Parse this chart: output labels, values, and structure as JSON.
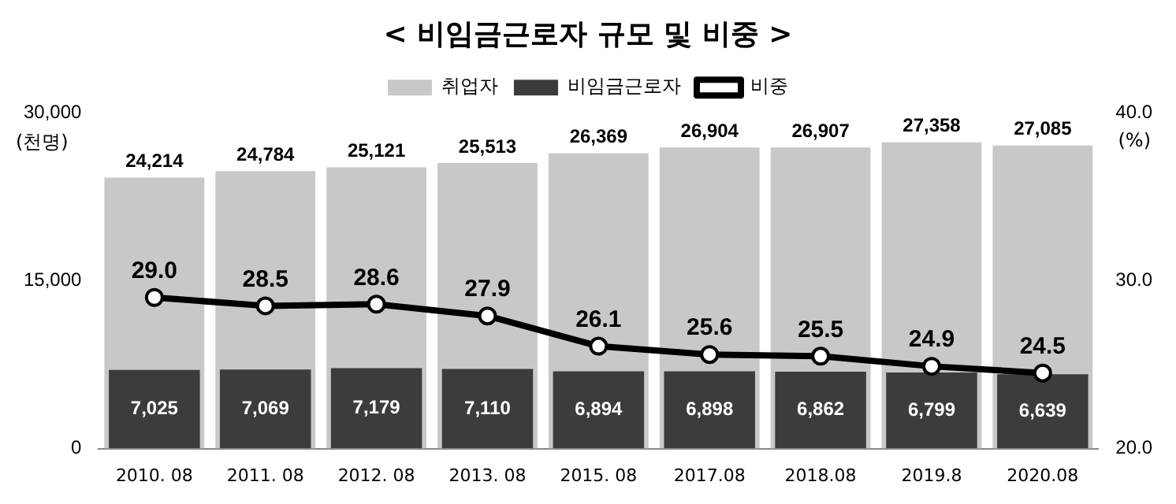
{
  "chart_data": {
    "type": "bar",
    "title": "< 비임금근로자 규모 및 비중 >",
    "ylabel": "(천명)",
    "y2label": "(%)",
    "categories": [
      "2010. 08",
      "2011. 08",
      "2012. 08",
      "2013. 08",
      "2015. 08",
      "2017.08",
      "2018.08",
      "2019.8",
      "2020.08"
    ],
    "series": [
      {
        "name": "취업자",
        "color": "#c8c8c8",
        "values": [
          24214,
          24784,
          25121,
          25513,
          26369,
          26904,
          26907,
          27358,
          27085
        ],
        "value_labels": [
          "24,214",
          "24,784",
          "25,121",
          "25,513",
          "26,369",
          "26,904",
          "26,907",
          "27,358",
          "27,085"
        ]
      },
      {
        "name": "비임금근로자",
        "color": "#3c3c3c",
        "values": [
          7025,
          7069,
          7179,
          7110,
          6894,
          6898,
          6862,
          6799,
          6639
        ],
        "value_labels": [
          "7,025",
          "7,069",
          "7,179",
          "7,110",
          "6,894",
          "6,898",
          "6,862",
          "6,799",
          "6,639"
        ]
      },
      {
        "name": "비중",
        "type": "line",
        "axis": "y2",
        "color": "#000000",
        "values": [
          29.0,
          28.5,
          28.6,
          27.9,
          26.1,
          25.6,
          25.5,
          24.9,
          24.5
        ],
        "value_labels": [
          "29.0",
          "28.5",
          "28.6",
          "27.9",
          "26.1",
          "25.6",
          "25.5",
          "24.9",
          "24.5"
        ]
      }
    ],
    "ylim": [
      0,
      30000
    ],
    "yticks": [
      0,
      {
        "value": 15000,
        "label": "15,000"
      },
      {
        "value": 30000,
        "label": "30,000"
      }
    ],
    "y2lim": [
      20,
      40
    ],
    "y2ticks": [
      {
        "value": 20,
        "label": "20.0"
      },
      {
        "value": 30,
        "label": "30.0"
      },
      {
        "value": 40,
        "label": "40.0"
      }
    ],
    "legend": "top",
    "marker": "circle",
    "grid": false
  }
}
